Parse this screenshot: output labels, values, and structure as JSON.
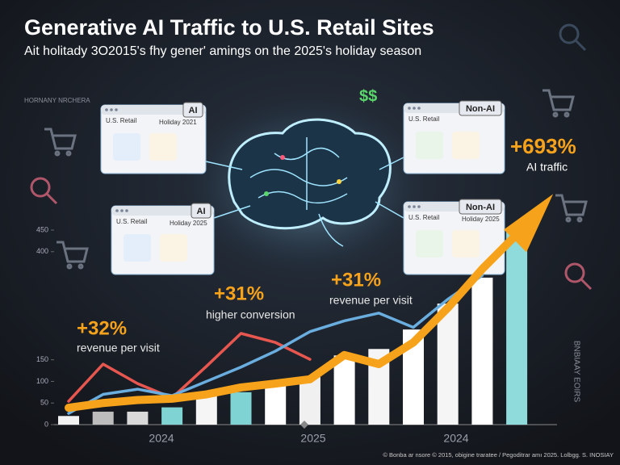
{
  "header": {
    "title": "Generative AI Traffic to U.S. Retail Sites",
    "subtitle": "Ait holitady 3O2015's fhy gener' amings on the 2025's holiday season"
  },
  "logo": "HORNANY NRCHERA",
  "currency_mark": "$$",
  "cards": [
    {
      "label": "U.S. Retail",
      "period": "Holiday 2021",
      "badge": "AI"
    },
    {
      "label": "U.S. Retail",
      "badge": "Non-AI"
    },
    {
      "label": "U.S. Retail",
      "period": "Holiday 2025",
      "badge": "AI"
    },
    {
      "label": "U.S. Retail",
      "period": "Holiday 2025",
      "badge": "Non-AI"
    }
  ],
  "chart_data": {
    "type": "bar",
    "categories": [
      null,
      null,
      null,
      null,
      null,
      null,
      null,
      null,
      null,
      null,
      null,
      null,
      null,
      null
    ],
    "period_labels": [
      "2024",
      "2025",
      "2024"
    ],
    "values": [
      20,
      30,
      30,
      40,
      70,
      75,
      90,
      110,
      160,
      175,
      220,
      280,
      340,
      450
    ],
    "bar_colors": [
      "#f2f2f2",
      "#bdbdbd",
      "#d9d9d9",
      "#7fd3d3",
      "#f5f5f5",
      "#7fd3d3",
      "#ffffff",
      "#f0f0f0",
      "#ffffff",
      "#f5f5f5",
      "#ffffff",
      "#f5f5f5",
      "#ffffff",
      "#8fdbdb"
    ],
    "series": [
      {
        "color": "#e8574f",
        "values": [
          54,
          140,
          95,
          62,
          135,
          211,
          190,
          151,
          null,
          null,
          null,
          null,
          null,
          null
        ]
      },
      {
        "color": "#6aaee0",
        "values": [
          26,
          70,
          82,
          67,
          100,
          133,
          170,
          215,
          240,
          258,
          225,
          290,
          345,
          null
        ]
      },
      {
        "color": "#f7a21b",
        "values": [
          39,
          50,
          57,
          60,
          70,
          86,
          95,
          105,
          161,
          140,
          190,
          270,
          360,
          440
        ]
      }
    ],
    "ylim": [
      0,
      450
    ],
    "yticks": [
      0,
      50,
      100,
      150,
      400,
      450
    ],
    "grid": false,
    "annotations": [
      {
        "text": "+32%",
        "color": "#f7a21b"
      },
      {
        "text": "revenue per visit",
        "color": "#e8e8e8"
      },
      {
        "text": "+31%",
        "color": "#f7a21b"
      },
      {
        "text": "higher conversion",
        "color": "#e8e8e8"
      },
      {
        "text": "+31%",
        "color": "#f7a21b"
      },
      {
        "text": "revenue per visit",
        "color": "#e8e8e8"
      },
      {
        "text": "+693%",
        "color": "#f7a21b"
      },
      {
        "text": "AI traffic",
        "color": "#ffffff"
      }
    ],
    "side_text": "BNBIAAY EOIRS",
    "footer": "© Bonba ar nsore © 2015, obigine traratee / Pegoditrar amı 2025. Lolbgg. S. INOSIAY"
  }
}
